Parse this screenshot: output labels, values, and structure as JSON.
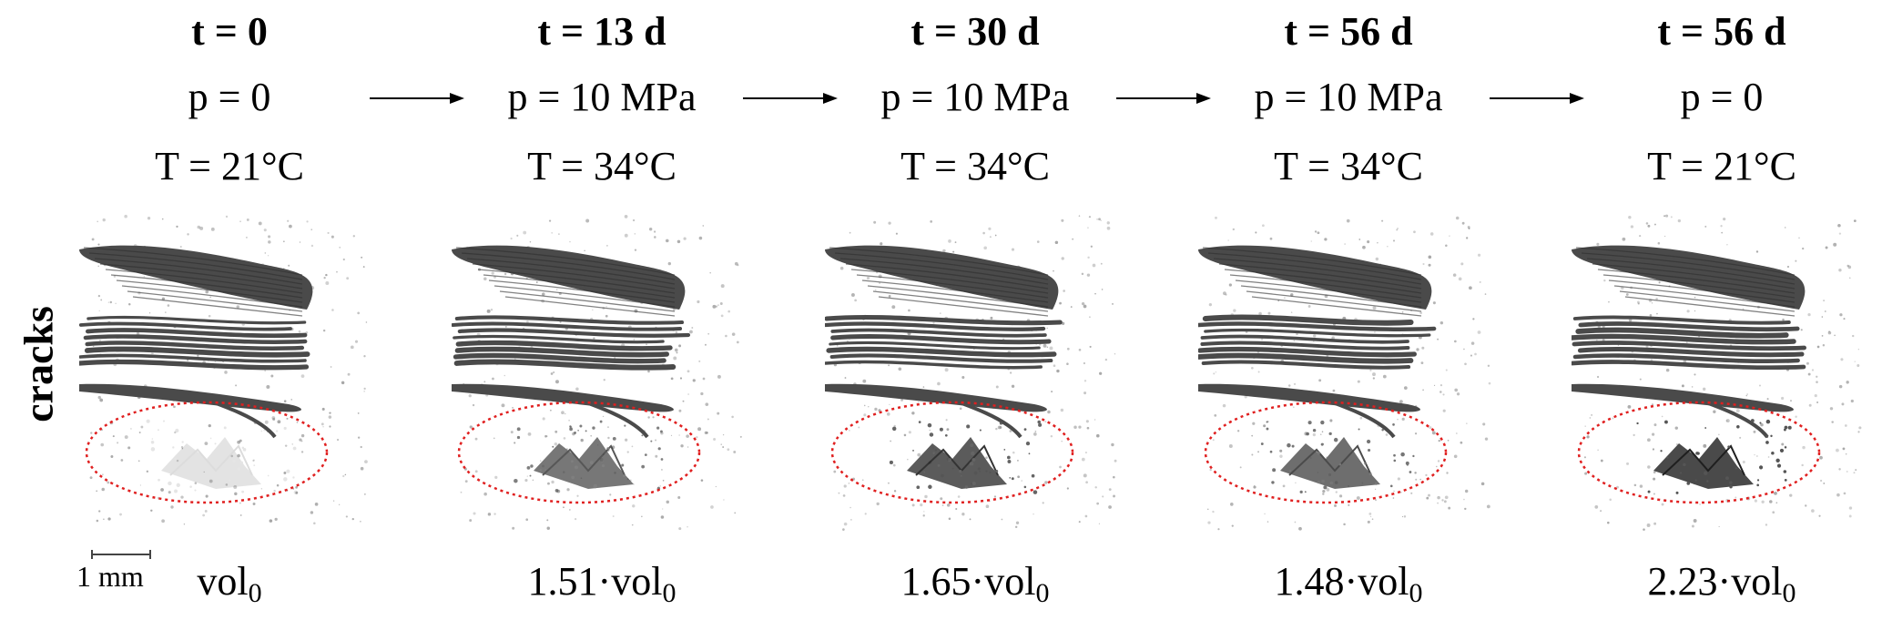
{
  "row_label": "cracks",
  "scale_bar": {
    "label": "1 mm"
  },
  "arrow_symbol": "right-arrow",
  "stages": [
    {
      "t": "t = 0",
      "p": "p = 0",
      "T": "T = 21°C",
      "vol_factor": "",
      "vol_base": "vol",
      "vol_sub": "0"
    },
    {
      "t": "t = 13 d",
      "p": "p = 10 MPa",
      "T": "T = 34°C",
      "vol_factor": "1.51·",
      "vol_base": "vol",
      "vol_sub": "0"
    },
    {
      "t": "t = 30 d",
      "p": "p = 10 MPa",
      "T": "T = 34°C",
      "vol_factor": "1.65·",
      "vol_base": "vol",
      "vol_sub": "0"
    },
    {
      "t": "t = 56 d",
      "p": "p = 10 MPa",
      "T": "T = 34°C",
      "vol_factor": "1.48·",
      "vol_base": "vol",
      "vol_sub": "0"
    },
    {
      "t": "t = 56 d",
      "p": "p = 0",
      "T": "T = 21°C",
      "vol_factor": "2.23·",
      "vol_base": "vol",
      "vol_sub": "0"
    }
  ],
  "colors": {
    "crack": "#4a4a4a",
    "highlight_ellipse": "#e02020"
  }
}
